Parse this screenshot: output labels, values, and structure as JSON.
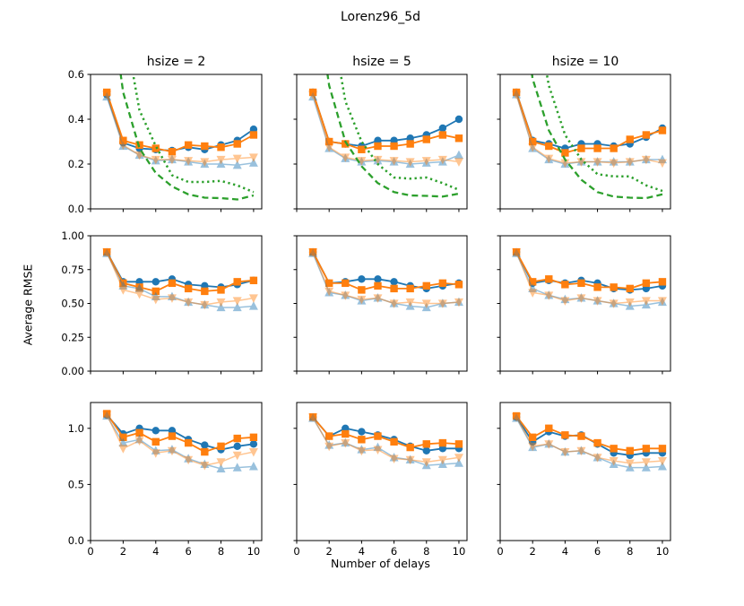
{
  "chart_data": {
    "type": "line",
    "title": "Lorenz96_5d",
    "xlabel": "Number of delays",
    "ylabel": "Average RMSE",
    "grid": false,
    "legend": "none",
    "columns": [
      "hsize = 2",
      "hsize = 5",
      "hsize = 10"
    ],
    "x": [
      1,
      2,
      3,
      4,
      5,
      6,
      7,
      8,
      9,
      10
    ],
    "xlim": [
      0,
      10.5
    ],
    "xticks": [
      0,
      2,
      4,
      6,
      8,
      10
    ],
    "rows": [
      {
        "ylim": [
          0,
          0.6
        ],
        "yticks": [
          0.0,
          0.2,
          0.4,
          0.6
        ],
        "tick_decimals": 1
      },
      {
        "ylim": [
          0,
          1.0
        ],
        "yticks": [
          0.0,
          0.25,
          0.5,
          0.75,
          1.0
        ],
        "tick_decimals": 2
      },
      {
        "ylim": [
          0,
          1.23
        ],
        "yticks": [
          0.0,
          0.5,
          1.0
        ],
        "tick_decimals": 1
      }
    ],
    "series_styles": [
      {
        "key": "blue_circles",
        "color": "#1f77b4",
        "marker": "circle",
        "dash": "solid",
        "opacity": 1,
        "width": 1.8
      },
      {
        "key": "orange_squares",
        "color": "#ff7f0e",
        "marker": "square",
        "dash": "solid",
        "opacity": 1,
        "width": 1.8
      },
      {
        "key": "light_blue_triangles_up",
        "color": "#1f77b4",
        "marker": "triangle_up",
        "dash": "solid",
        "opacity": 0.45,
        "width": 1.5
      },
      {
        "key": "light_orange_triangles_down",
        "color": "#ff7f0e",
        "marker": "triangle_down",
        "dash": "solid",
        "opacity": 0.45,
        "width": 1.5
      },
      {
        "key": "green_dashed",
        "color": "#2ca02c",
        "marker": "none",
        "dash": "dashed",
        "opacity": 1,
        "width": 2.3
      },
      {
        "key": "green_dotted",
        "color": "#2ca02c",
        "marker": "none",
        "dash": "dotted",
        "opacity": 1,
        "width": 2.5
      }
    ],
    "cells": [
      [
        {
          "blue_circles": [
            0.51,
            0.295,
            0.27,
            0.265,
            0.26,
            0.275,
            0.265,
            0.285,
            0.305,
            0.355
          ],
          "orange_squares": [
            0.52,
            0.305,
            0.285,
            0.27,
            0.255,
            0.285,
            0.28,
            0.275,
            0.29,
            0.33
          ],
          "light_blue_triangles_up": [
            0.5,
            0.28,
            0.24,
            0.215,
            0.22,
            0.21,
            0.2,
            0.2,
            0.195,
            0.205
          ],
          "light_orange_triangles_down": [
            0.51,
            0.285,
            0.24,
            0.22,
            0.22,
            0.215,
            0.21,
            0.22,
            0.225,
            0.23
          ],
          "green_dashed": [
            1.05,
            0.52,
            0.27,
            0.16,
            0.1,
            0.065,
            0.05,
            0.048,
            0.042,
            0.06
          ],
          "green_dotted": [
            1.5,
            0.85,
            0.44,
            0.28,
            0.15,
            0.12,
            0.12,
            0.125,
            0.105,
            0.075
          ]
        },
        {
          "blue_circles": [
            0.52,
            0.3,
            0.29,
            0.28,
            0.305,
            0.305,
            0.315,
            0.33,
            0.36,
            0.4
          ],
          "orange_squares": [
            0.52,
            0.3,
            0.29,
            0.265,
            0.28,
            0.28,
            0.29,
            0.31,
            0.33,
            0.315
          ],
          "light_blue_triangles_up": [
            0.5,
            0.27,
            0.225,
            0.21,
            0.215,
            0.21,
            0.2,
            0.205,
            0.21,
            0.24
          ],
          "light_orange_triangles_down": [
            0.51,
            0.275,
            0.23,
            0.215,
            0.22,
            0.215,
            0.21,
            0.215,
            0.22,
            0.21
          ],
          "green_dashed": [
            1.05,
            0.55,
            0.3,
            0.19,
            0.115,
            0.075,
            0.06,
            0.058,
            0.055,
            0.068
          ],
          "green_dotted": [
            1.5,
            0.9,
            0.48,
            0.3,
            0.2,
            0.14,
            0.135,
            0.14,
            0.115,
            0.085
          ]
        },
        {
          "blue_circles": [
            0.52,
            0.305,
            0.29,
            0.27,
            0.29,
            0.29,
            0.28,
            0.29,
            0.32,
            0.36
          ],
          "orange_squares": [
            0.52,
            0.3,
            0.28,
            0.25,
            0.27,
            0.27,
            0.27,
            0.31,
            0.33,
            0.35
          ],
          "light_blue_triangles_up": [
            0.51,
            0.27,
            0.22,
            0.2,
            0.21,
            0.21,
            0.21,
            0.21,
            0.22,
            0.22
          ],
          "light_orange_triangles_down": [
            0.51,
            0.275,
            0.225,
            0.205,
            0.21,
            0.21,
            0.205,
            0.21,
            0.22,
            0.205
          ],
          "green_dashed": [
            1.1,
            0.58,
            0.35,
            0.22,
            0.13,
            0.075,
            0.055,
            0.05,
            0.048,
            0.065
          ],
          "green_dotted": [
            1.6,
            0.95,
            0.55,
            0.33,
            0.22,
            0.155,
            0.145,
            0.145,
            0.105,
            0.08
          ]
        }
      ],
      [
        {
          "blue_circles": [
            0.88,
            0.66,
            0.66,
            0.66,
            0.68,
            0.64,
            0.63,
            0.62,
            0.64,
            0.67
          ],
          "orange_squares": [
            0.88,
            0.65,
            0.62,
            0.59,
            0.65,
            0.61,
            0.59,
            0.6,
            0.66,
            0.67
          ],
          "light_blue_triangles_up": [
            0.87,
            0.63,
            0.61,
            0.55,
            0.55,
            0.51,
            0.49,
            0.47,
            0.47,
            0.48
          ],
          "light_orange_triangles_down": [
            0.88,
            0.6,
            0.57,
            0.53,
            0.54,
            0.51,
            0.49,
            0.51,
            0.52,
            0.54
          ]
        },
        {
          "blue_circles": [
            0.88,
            0.65,
            0.66,
            0.68,
            0.68,
            0.66,
            0.63,
            0.61,
            0.63,
            0.65
          ],
          "orange_squares": [
            0.88,
            0.65,
            0.65,
            0.6,
            0.63,
            0.61,
            0.61,
            0.63,
            0.65,
            0.64
          ],
          "light_blue_triangles_up": [
            0.87,
            0.58,
            0.56,
            0.52,
            0.54,
            0.5,
            0.48,
            0.47,
            0.5,
            0.51
          ],
          "light_orange_triangles_down": [
            0.88,
            0.59,
            0.56,
            0.53,
            0.54,
            0.5,
            0.51,
            0.5,
            0.5,
            0.51
          ]
        },
        {
          "blue_circles": [
            0.88,
            0.65,
            0.67,
            0.65,
            0.67,
            0.65,
            0.61,
            0.6,
            0.61,
            0.63
          ],
          "orange_squares": [
            0.88,
            0.66,
            0.68,
            0.64,
            0.65,
            0.62,
            0.62,
            0.61,
            0.65,
            0.66
          ],
          "light_blue_triangles_up": [
            0.87,
            0.61,
            0.56,
            0.53,
            0.54,
            0.52,
            0.5,
            0.48,
            0.49,
            0.51
          ],
          "light_orange_triangles_down": [
            0.88,
            0.58,
            0.56,
            0.52,
            0.54,
            0.52,
            0.5,
            0.51,
            0.52,
            0.52
          ]
        }
      ],
      [
        {
          "blue_circles": [
            1.12,
            0.95,
            1.0,
            0.98,
            0.98,
            0.9,
            0.85,
            0.81,
            0.84,
            0.86
          ],
          "orange_squares": [
            1.13,
            0.92,
            0.96,
            0.88,
            0.93,
            0.87,
            0.79,
            0.84,
            0.91,
            0.92
          ],
          "light_blue_triangles_up": [
            1.11,
            0.87,
            0.9,
            0.8,
            0.81,
            0.73,
            0.68,
            0.64,
            0.65,
            0.66
          ],
          "light_orange_triangles_down": [
            1.12,
            0.82,
            0.89,
            0.78,
            0.8,
            0.72,
            0.67,
            0.7,
            0.76,
            0.79
          ]
        },
        {
          "blue_circles": [
            1.1,
            0.93,
            1.0,
            0.97,
            0.94,
            0.9,
            0.84,
            0.8,
            0.82,
            0.82
          ],
          "orange_squares": [
            1.1,
            0.93,
            0.95,
            0.9,
            0.93,
            0.88,
            0.83,
            0.86,
            0.87,
            0.86
          ],
          "light_blue_triangles_up": [
            1.09,
            0.85,
            0.87,
            0.81,
            0.83,
            0.74,
            0.72,
            0.67,
            0.68,
            0.69
          ],
          "light_orange_triangles_down": [
            1.1,
            0.84,
            0.87,
            0.8,
            0.81,
            0.73,
            0.72,
            0.7,
            0.72,
            0.74
          ]
        },
        {
          "blue_circles": [
            1.1,
            0.88,
            0.97,
            0.93,
            0.94,
            0.86,
            0.78,
            0.76,
            0.78,
            0.78
          ],
          "orange_squares": [
            1.11,
            0.92,
            1.0,
            0.94,
            0.93,
            0.87,
            0.82,
            0.8,
            0.82,
            0.82
          ],
          "light_blue_triangles_up": [
            1.09,
            0.83,
            0.86,
            0.79,
            0.8,
            0.74,
            0.68,
            0.65,
            0.65,
            0.66
          ],
          "light_orange_triangles_down": [
            1.1,
            0.84,
            0.86,
            0.79,
            0.8,
            0.74,
            0.71,
            0.69,
            0.7,
            0.71
          ]
        }
      ]
    ]
  }
}
